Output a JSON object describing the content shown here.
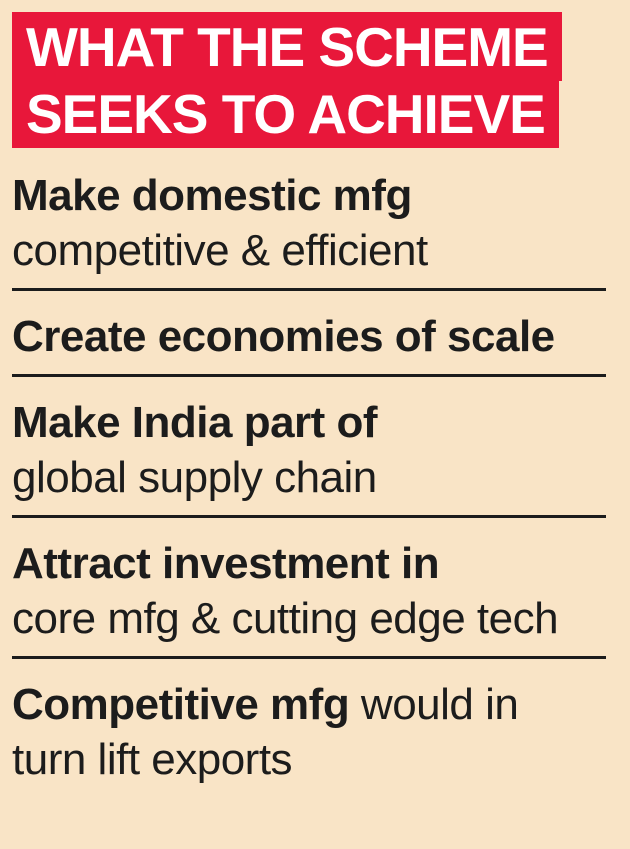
{
  "headline": {
    "line1": "WHAT THE SCHEME",
    "line2": "SEEKS TO ACHIEVE"
  },
  "items": [
    {
      "bold": "Make domestic mfg",
      "rest": "competitive & efficient"
    },
    {
      "bold": "Create economies of scale",
      "rest": ""
    },
    {
      "bold": "Make India part of",
      "rest": "global supply chain"
    },
    {
      "bold": "Attract investment in",
      "rest": "core mfg & cutting edge tech"
    },
    {
      "bold": "Competitive mfg",
      "rest_inline": " would in",
      "rest": "turn lift exports"
    }
  ],
  "colors": {
    "background": "#f9e4c6",
    "headline_bg": "#e8173a",
    "headline_text": "#ffffff",
    "text": "#1c1c1c"
  }
}
